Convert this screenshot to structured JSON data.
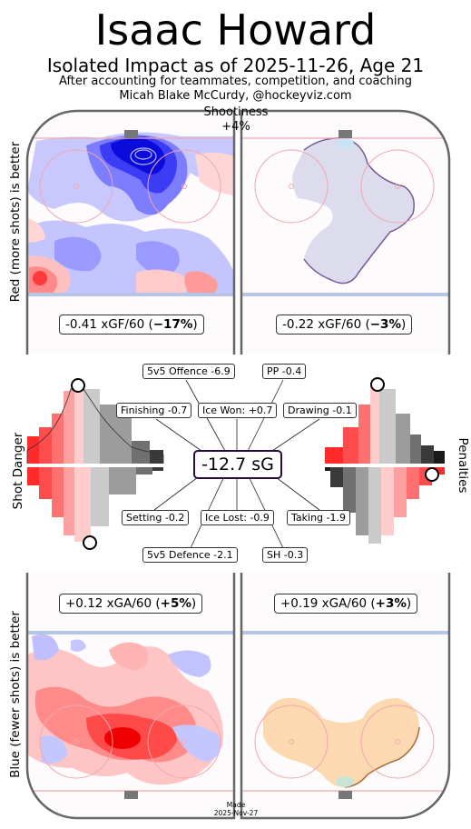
{
  "header": {
    "title": "Isaac Howard",
    "subtitle": "Isolated Impact as of 2025-11-26, Age 21",
    "note1": "After accounting for teammates, competition, and coaching",
    "note2": "Micah Blake McCurdy, @hockeyviz.com"
  },
  "labels": {
    "top_left": "Red (more shots) is better",
    "bottom_left": "Blue (fewer shots) is better",
    "shot_danger": "Shot Danger",
    "penalties": "Penalties",
    "shootiness_title": "Shootiness",
    "shootiness_value": "+4%"
  },
  "colors": {
    "red": "#ff0000",
    "blue": "#0000ff",
    "lavender": "#dcdcec",
    "orange": "#fcd9b0",
    "sg_border": "#2b0a3d"
  },
  "chart_data": {
    "type": "heatmap",
    "rink_panels": [
      {
        "id": "offence-5v5",
        "pre": "-0.41 xGF/60 (",
        "pct": "−17%",
        "post": ")",
        "rate": -0.41,
        "pct_value": -17
      },
      {
        "id": "offence-pp",
        "pre": "-0.22 xGF/60 (",
        "pct": "−3%",
        "post": ")",
        "rate": -0.22,
        "pct_value": -3
      },
      {
        "id": "defence-5v5",
        "pre": "+0.12 xGA/60 (",
        "pct": "+5%",
        "post": ")",
        "rate": 0.12,
        "pct_value": 5
      },
      {
        "id": "defence-pk",
        "pre": "+0.19 xGA/60 (",
        "pct": "+3%",
        "post": ")",
        "rate": 0.19,
        "pct_value": 3
      }
    ],
    "total": {
      "text": "-12.7 sG",
      "value": -12.7
    },
    "components": [
      {
        "id": "offence-5v5",
        "text": "5v5 Offence -6.9",
        "value": -6.9
      },
      {
        "id": "pp",
        "text": "PP -0.4",
        "value": -0.4
      },
      {
        "id": "finishing",
        "text": "Finishing -0.7",
        "value": -0.7
      },
      {
        "id": "ice-won",
        "text": "Ice Won: +0.7",
        "value": 0.7
      },
      {
        "id": "drawing",
        "text": "Drawing -0.1",
        "value": -0.1
      },
      {
        "id": "setting",
        "text": "Setting -0.2",
        "value": -0.2
      },
      {
        "id": "ice-lost",
        "text": "Ice Lost: -0.9",
        "value": -0.9
      },
      {
        "id": "taking",
        "text": "Taking -1.9",
        "value": -1.9
      },
      {
        "id": "defence-5v5",
        "text": "5v5 Defence -2.1",
        "value": -2.1
      },
      {
        "id": "sh",
        "text": "SH -0.3",
        "value": -0.3
      }
    ]
  },
  "footer": {
    "made_line1": "Made",
    "made_line2": "2025-Nov-27"
  }
}
